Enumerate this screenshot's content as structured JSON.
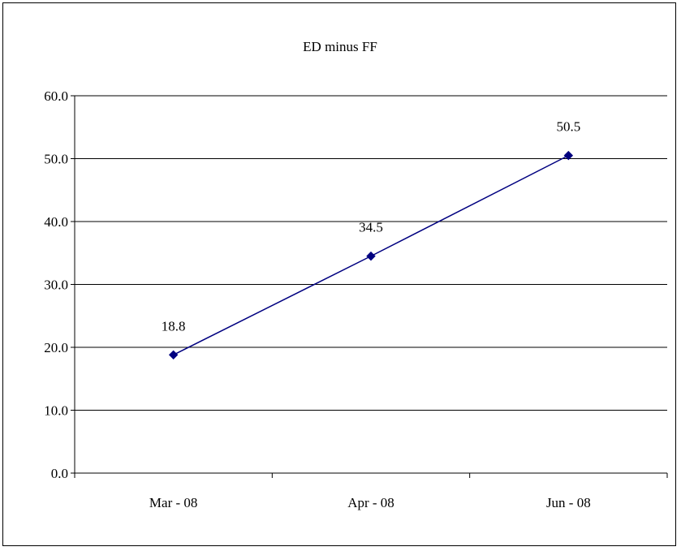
{
  "chart_data": {
    "type": "line",
    "title": "ED minus FF",
    "xlabel": "",
    "ylabel": "",
    "categories": [
      "Mar - 08",
      "Apr - 08",
      "Jun - 08"
    ],
    "series": [
      {
        "values": [
          18.8,
          34.5,
          50.5
        ],
        "data_labels": [
          "18.8",
          "34.5",
          "50.5"
        ],
        "color": "#000080",
        "marker": "diamond"
      }
    ],
    "ylim": [
      0,
      60
    ],
    "yticks": [
      0,
      10,
      20,
      30,
      40,
      50,
      60
    ],
    "ytick_labels": [
      "0.0",
      "10.0",
      "20.0",
      "30.0",
      "40.0",
      "50.0",
      "60.0"
    ],
    "grid": "horizontal",
    "legend": "none"
  }
}
